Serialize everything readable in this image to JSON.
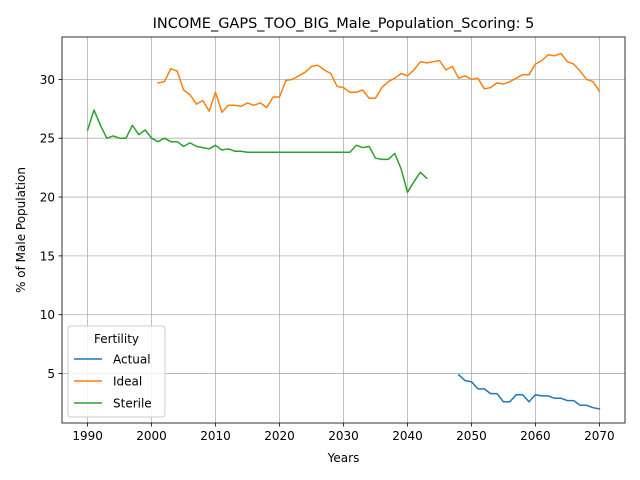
{
  "chart_data": {
    "type": "line",
    "title": "INCOME_GAPS_TOO_BIG_Male_Population_Scoring: 5",
    "xlabel": "Years",
    "ylabel": "% of Male Population",
    "xlim": [
      1986,
      2074
    ],
    "ylim": [
      0.8,
      33.6
    ],
    "xticks": [
      1990,
      2000,
      2010,
      2020,
      2030,
      2040,
      2050,
      2060,
      2070
    ],
    "yticks": [
      5,
      10,
      15,
      20,
      25,
      30
    ],
    "grid": true,
    "legend": {
      "title": "Fertility",
      "placement": "lower-left"
    },
    "series": [
      {
        "name": "Actual",
        "color": "#1f77b4",
        "x": [
          2048,
          2049,
          2050,
          2051,
          2052,
          2053,
          2054,
          2055,
          2056,
          2057,
          2058,
          2059,
          2060,
          2061,
          2062,
          2063,
          2064,
          2065,
          2066,
          2067,
          2068,
          2069,
          2070
        ],
        "y": [
          4.9,
          4.4,
          4.3,
          3.7,
          3.7,
          3.3,
          3.3,
          2.6,
          2.6,
          3.2,
          3.2,
          2.6,
          3.2,
          3.1,
          3.1,
          2.9,
          2.9,
          2.7,
          2.7,
          2.3,
          2.3,
          2.1,
          2.0
        ]
      },
      {
        "name": "Ideal",
        "color": "#ff7f0e",
        "x": [
          2001,
          2002,
          2003,
          2004,
          2005,
          2006,
          2007,
          2008,
          2009,
          2010,
          2011,
          2012,
          2013,
          2014,
          2015,
          2016,
          2017,
          2018,
          2019,
          2020,
          2021,
          2022,
          2023,
          2024,
          2025,
          2026,
          2027,
          2028,
          2029,
          2030,
          2031,
          2032,
          2033,
          2034,
          2035,
          2036,
          2037,
          2038,
          2039,
          2040,
          2041,
          2042,
          2043,
          2044,
          2045,
          2046,
          2047,
          2048,
          2049,
          2050,
          2051,
          2052,
          2053,
          2054,
          2055,
          2056,
          2057,
          2058,
          2059,
          2060,
          2061,
          2062,
          2063,
          2064,
          2065,
          2066,
          2067,
          2068,
          2069,
          2070
        ],
        "y": [
          29.7,
          29.8,
          30.9,
          30.7,
          29.1,
          28.7,
          27.9,
          28.2,
          27.3,
          28.9,
          27.2,
          27.8,
          27.8,
          27.7,
          28.0,
          27.8,
          28.0,
          27.6,
          28.5,
          28.5,
          29.9,
          30.0,
          30.3,
          30.6,
          31.1,
          31.2,
          30.8,
          30.5,
          29.4,
          29.3,
          28.9,
          28.9,
          29.1,
          28.4,
          28.4,
          29.3,
          29.8,
          30.1,
          30.5,
          30.3,
          30.8,
          31.5,
          31.4,
          31.5,
          31.6,
          30.8,
          31.1,
          30.1,
          30.3,
          30.0,
          30.1,
          29.2,
          29.3,
          29.7,
          29.6,
          29.8,
          30.1,
          30.4,
          30.4,
          31.3,
          31.6,
          32.1,
          32.0,
          32.2,
          31.5,
          31.3,
          30.7,
          30.0,
          29.8,
          29.0
        ]
      },
      {
        "name": "Sterile",
        "color": "#2ca02c",
        "x": [
          1990,
          1991,
          1992,
          1993,
          1994,
          1995,
          1996,
          1997,
          1998,
          1999,
          2000,
          2001,
          2002,
          2003,
          2004,
          2005,
          2006,
          2007,
          2008,
          2009,
          2010,
          2011,
          2012,
          2013,
          2014,
          2015,
          2016,
          2017,
          2018,
          2019,
          2020,
          2021,
          2022,
          2023,
          2024,
          2025,
          2026,
          2027,
          2028,
          2029,
          2030,
          2031,
          2032,
          2033,
          2034,
          2035,
          2036,
          2037,
          2038,
          2039,
          2040,
          2041,
          2042,
          2043
        ],
        "y": [
          25.7,
          27.4,
          26.1,
          25.0,
          25.2,
          25.0,
          25.0,
          26.1,
          25.3,
          25.7,
          25.0,
          24.7,
          25.0,
          24.7,
          24.7,
          24.3,
          24.6,
          24.3,
          24.2,
          24.1,
          24.4,
          24.0,
          24.1,
          23.9,
          23.9,
          23.8,
          23.8,
          23.8,
          23.8,
          23.8,
          23.8,
          23.8,
          23.8,
          23.8,
          23.8,
          23.8,
          23.8,
          23.8,
          23.8,
          23.8,
          23.8,
          23.8,
          24.4,
          24.2,
          24.3,
          23.3,
          23.2,
          23.2,
          23.7,
          22.4,
          20.4,
          21.3,
          22.1,
          21.6
        ]
      }
    ]
  }
}
